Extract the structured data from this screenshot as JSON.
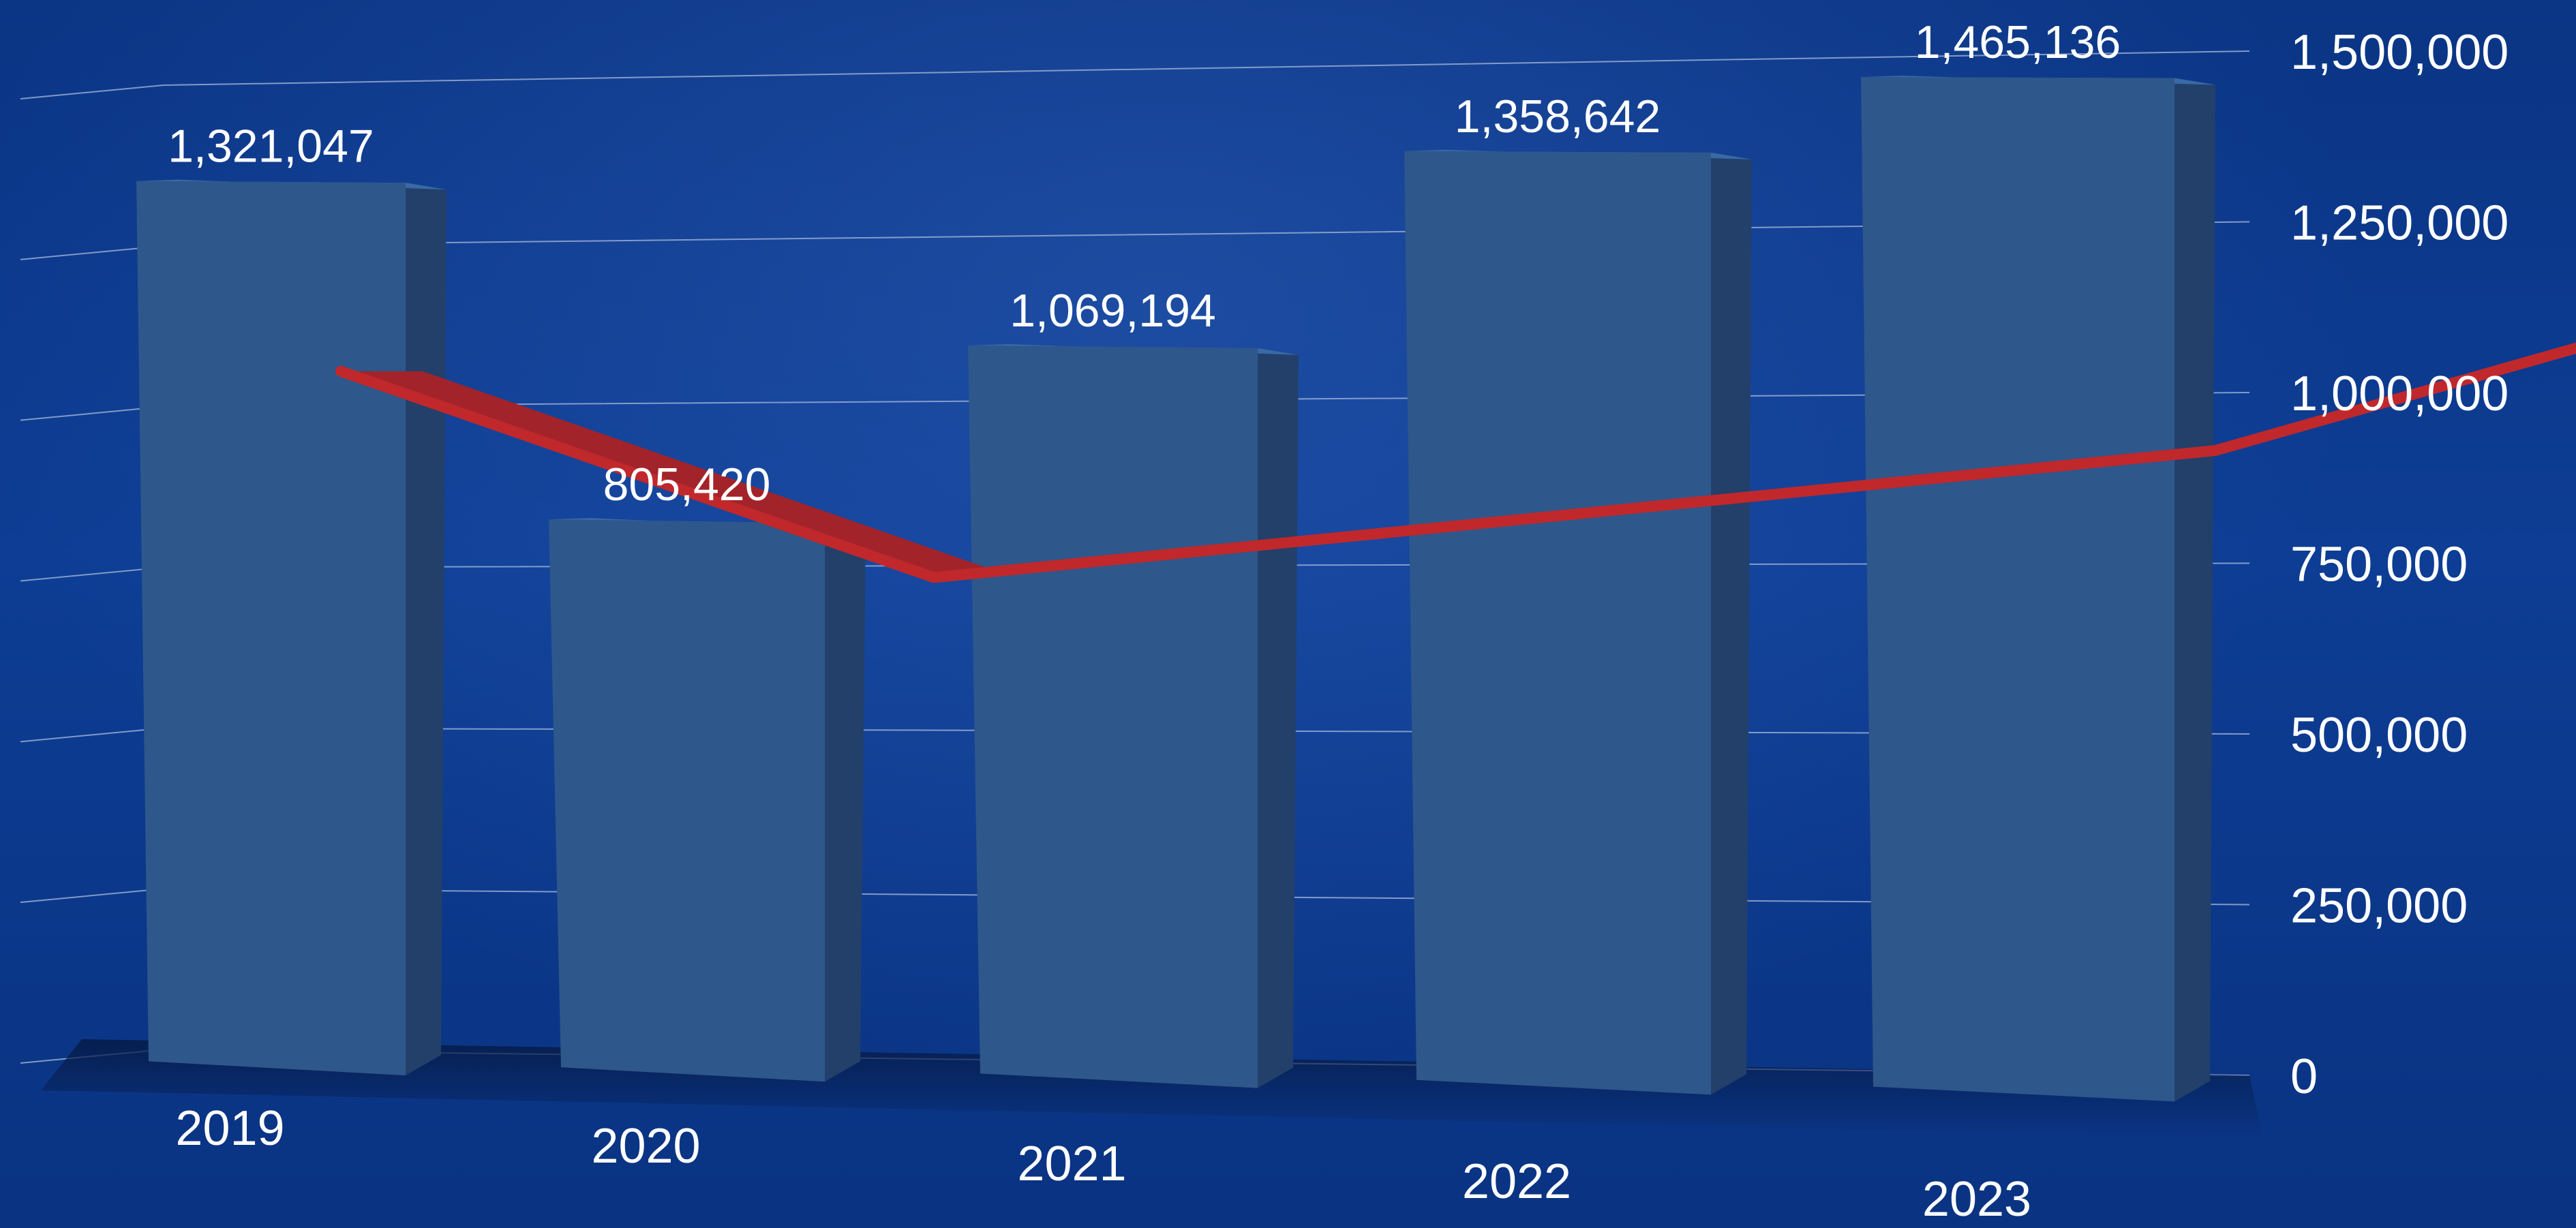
{
  "chart_data": {
    "type": "bar",
    "categories": [
      "2019",
      "2020",
      "2021",
      "2022",
      "2023"
    ],
    "series": [
      {
        "values": [
          1321047,
          805420,
          1069194,
          1358642,
          1465136
        ]
      }
    ],
    "data_labels": [
      "1,321,047",
      "805,420",
      "1,069,194",
      "1,358,642",
      "1,465,136"
    ],
    "y_ticks": [
      {
        "value": 0,
        "label": "0"
      },
      {
        "value": 250000,
        "label": "250,000"
      },
      {
        "value": 500000,
        "label": "500,000"
      },
      {
        "value": 750000,
        "label": "750,000"
      },
      {
        "value": 1000000,
        "label": "1,000,000"
      },
      {
        "value": 1250000,
        "label": "1,250,000"
      },
      {
        "value": 1500000,
        "label": "1,500,000"
      }
    ],
    "ylim": [
      0,
      1500000
    ],
    "y_axis_position": "right",
    "grid": true,
    "title": "",
    "xlabel": "",
    "ylabel": "",
    "trend_line": [
      1030000,
      720000,
      810000,
      905000,
      1065000
    ],
    "colors": {
      "background": "#0d3a8c",
      "bar_front": "#2e578b",
      "bar_side": "#22406a",
      "bar_top": "#3a6aa5",
      "trend_line": "#c0282c",
      "text": "#ffffff",
      "grid": "#9fb3d6"
    }
  }
}
